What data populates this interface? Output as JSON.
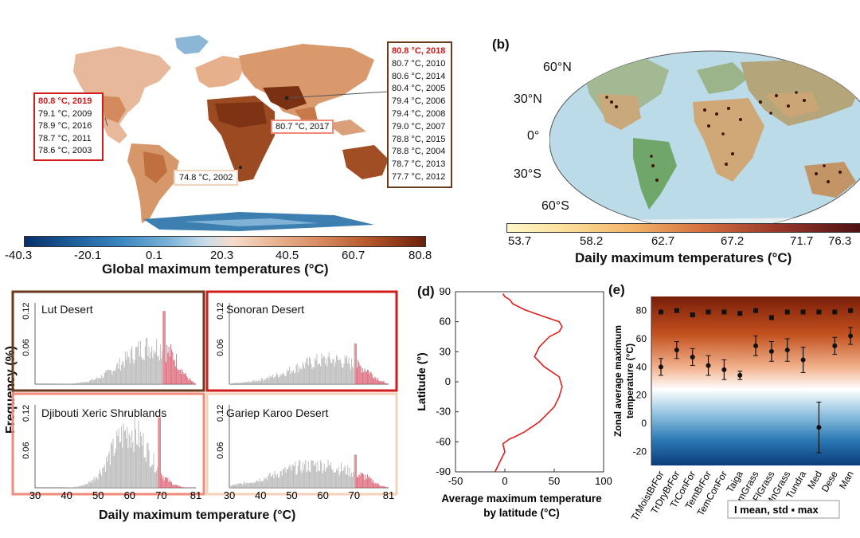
{
  "panel_labels": {
    "b": "(b)",
    "d": "(d)",
    "e": "(e)"
  },
  "panel_a": {
    "colorbar_ticks": [
      "-40.3",
      "-20.1",
      "0.1",
      "20.3",
      "40.5",
      "60.7",
      "80.8"
    ],
    "colorbar_title": "Global maximum temperatures (°C)",
    "box_americas": {
      "items": [
        "80.8 °C, 2019",
        "79.1 °C, 2009",
        "78.9 °C, 2016",
        "78.7 °C, 2011",
        "78.6 °C, 2003"
      ]
    },
    "box_asia": {
      "items": [
        "80.8 °C, 2018",
        "80.7 °C, 2010",
        "80.6 °C, 2014",
        "80.4 °C, 2005",
        "79.4 °C, 2006",
        "79.4 °C, 2008",
        "79.0 °C, 2007",
        "78.8 °C, 2015",
        "78.8 °C, 2004",
        "78.7 °C, 2013",
        "77.7 °C, 2012"
      ]
    },
    "label_africa": "80.7 °C, 2017",
    "label_australia": "74.8 °C, 2002"
  },
  "panel_b": {
    "lat_labels": [
      "60°N",
      "30°N",
      "0°",
      "30°S",
      "60°S"
    ],
    "colorbar_ticks": [
      "53.7",
      "58.2",
      "62.7",
      "67.2",
      "71.7",
      "76.3"
    ],
    "colorbar_title": "Daily maximum temperatures (°C)"
  },
  "panel_c": {
    "ylabel": "Frequency (%)",
    "xlabel": "Daily maximum temperature (°C)",
    "x_ticks": [
      "30",
      "40",
      "50",
      "60",
      "70",
      "81"
    ],
    "y_ticks": [
      "0.12",
      "0.06"
    ],
    "subplots": [
      {
        "name": "Lut Desert",
        "border": "#6b3a1d"
      },
      {
        "name": "Sonoran Desert",
        "border": "#d21c1c"
      },
      {
        "name": "Djibouti Xeric Shrublands",
        "border": "#f08a7a"
      },
      {
        "name": "Gariep Karoo Desert",
        "border": "#f6d2b8"
      }
    ]
  },
  "chart_data": [
    {
      "type": "line",
      "panel": "d",
      "xlabel": "Average maximum temperature by latitude (°C)",
      "ylabel": "Latitude (°)",
      "xlim": [
        -50,
        100
      ],
      "ylim": [
        -90,
        90
      ],
      "x_ticks": [
        "-50",
        "0",
        "50",
        "100"
      ],
      "y_ticks": [
        "90",
        "60",
        "30",
        "0",
        "-30",
        "-60",
        "-90"
      ],
      "series": [
        {
          "color": "#e02020",
          "x": [
            -10,
            -5,
            0,
            -2,
            5,
            10,
            20,
            35,
            50,
            55,
            58,
            55,
            40,
            30,
            35,
            45,
            55,
            58,
            55,
            40,
            20,
            8,
            5,
            0,
            -2
          ],
          "y": [
            -90,
            -80,
            -70,
            -62,
            -57,
            -55,
            -50,
            -40,
            -25,
            -15,
            -5,
            5,
            15,
            25,
            35,
            45,
            50,
            55,
            60,
            65,
            72,
            78,
            82,
            85,
            88
          ]
        }
      ]
    },
    {
      "type": "scatter",
      "panel": "e",
      "ylabel": "Zonal average maximum temperature (°C)",
      "ylim": [
        -30,
        90
      ],
      "y_ticks": [
        "80",
        "60",
        "40",
        "20",
        "0",
        "-20"
      ],
      "legend": "mean, std ▪ max",
      "categories": [
        "TrMoistBrFor",
        "TrDryBrFor",
        "TrConFor",
        "TemBrFor",
        "TemConFor",
        "Taiga",
        "TemGrass",
        "FlGrass",
        "MnGrass",
        "Tundra",
        "Med",
        "Dese",
        "Man"
      ],
      "series": [
        {
          "name": "mean",
          "values": [
            40,
            52,
            47,
            41,
            38,
            34,
            55,
            51,
            52,
            45,
            -3,
            55,
            62
          ],
          "std": [
            6,
            6,
            6,
            7,
            7,
            3,
            7,
            7,
            8,
            9,
            18,
            6,
            6
          ]
        },
        {
          "name": "max",
          "values": [
            79,
            80,
            77,
            79,
            79,
            78,
            80,
            75,
            79,
            79,
            79,
            79,
            80
          ]
        }
      ]
    }
  ]
}
